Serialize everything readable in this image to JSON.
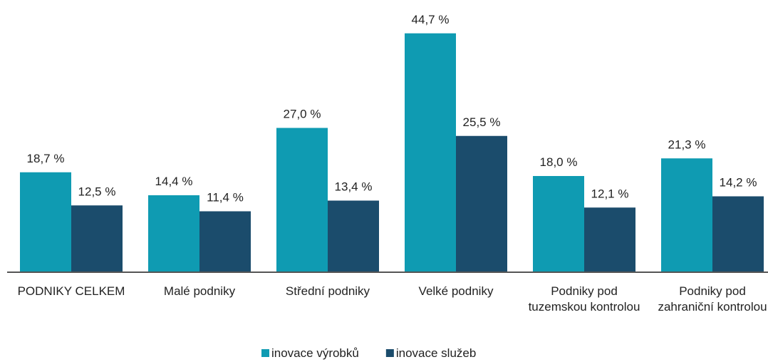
{
  "chart_data": {
    "type": "bar",
    "categories": [
      "PODNIKY CELKEM",
      "Malé podniky",
      "Střední podniky",
      "Velké podniky",
      "Podniky pod tuzemskou kontrolou",
      "Podniky pod zahraniční kontrolou"
    ],
    "series": [
      {
        "name": "inovace výrobků",
        "color": "#0f9bb2",
        "values": [
          18.7,
          14.4,
          27.0,
          44.7,
          18.0,
          21.3
        ],
        "value_labels": [
          "18,7 %",
          "14,4 %",
          "27,0 %",
          "44,7 %",
          "18,0 %",
          "21,3 %"
        ]
      },
      {
        "name": "inovace služeb",
        "color": "#1b4c6c",
        "values": [
          12.5,
          11.4,
          13.4,
          25.5,
          12.1,
          14.2
        ],
        "value_labels": [
          "12,5 %",
          "11,4 %",
          "13,4 %",
          "25,5 %",
          "12,1 %",
          "14,2 %"
        ]
      }
    ],
    "ylim": [
      0,
      50
    ],
    "legend": "bottom"
  }
}
